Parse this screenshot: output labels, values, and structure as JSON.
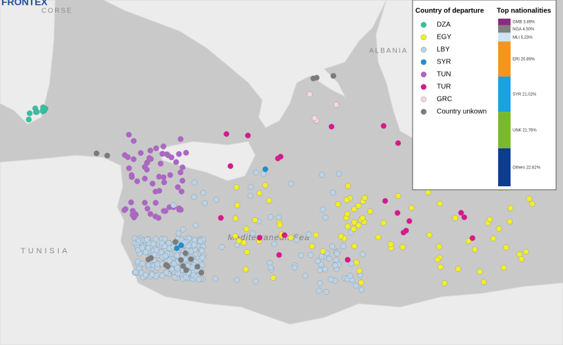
{
  "map": {
    "logo": "FRONTEX",
    "place_labels": [
      "CORSE",
      "ALBANIA",
      "TUNISIA",
      "Mediterranean Sea"
    ],
    "legend": {
      "title": "Country of departure",
      "entries": [
        {
          "name": "DZA",
          "color": "#2ec4a0"
        },
        {
          "name": "EGY",
          "color": "#f2ee2a"
        },
        {
          "name": "LBY",
          "color": "#b9d3e8"
        },
        {
          "name": "SYR",
          "color": "#1f8fd0"
        },
        {
          "name": "TUN",
          "color": "#b063c9"
        },
        {
          "name": "TUR",
          "color": "#df138f"
        },
        {
          "name": "GRC",
          "color": "#f7d6dc"
        },
        {
          "name": "Country unkown",
          "color": "#7b7b7b"
        }
      ]
    },
    "nationalities": {
      "title": "Top nationalities",
      "segments": [
        {
          "name": "GMB",
          "value": 3.89,
          "value_label": "3.89%",
          "color": "#8b2a7e"
        },
        {
          "name": "NGA",
          "value": 4.5,
          "value_label": "4.50%",
          "color": "#808080"
        },
        {
          "name": "MLI",
          "value": 5.23,
          "value_label": "5.23%",
          "color": "#cfe3f2"
        },
        {
          "name": "ERI",
          "value": 20.89,
          "value_label": "20.89%",
          "color": "#f7941d"
        },
        {
          "name": "SYR",
          "value": 21.02,
          "value_label": "21.02%",
          "color": "#1ba1e2"
        },
        {
          "name": "UNK",
          "value": 21.76,
          "value_label": "21.76%",
          "color": "#7ab929"
        },
        {
          "name": "Others",
          "value": 22.62,
          "value_label": "22.62%",
          "color": "#0d3d91"
        }
      ]
    }
  }
}
